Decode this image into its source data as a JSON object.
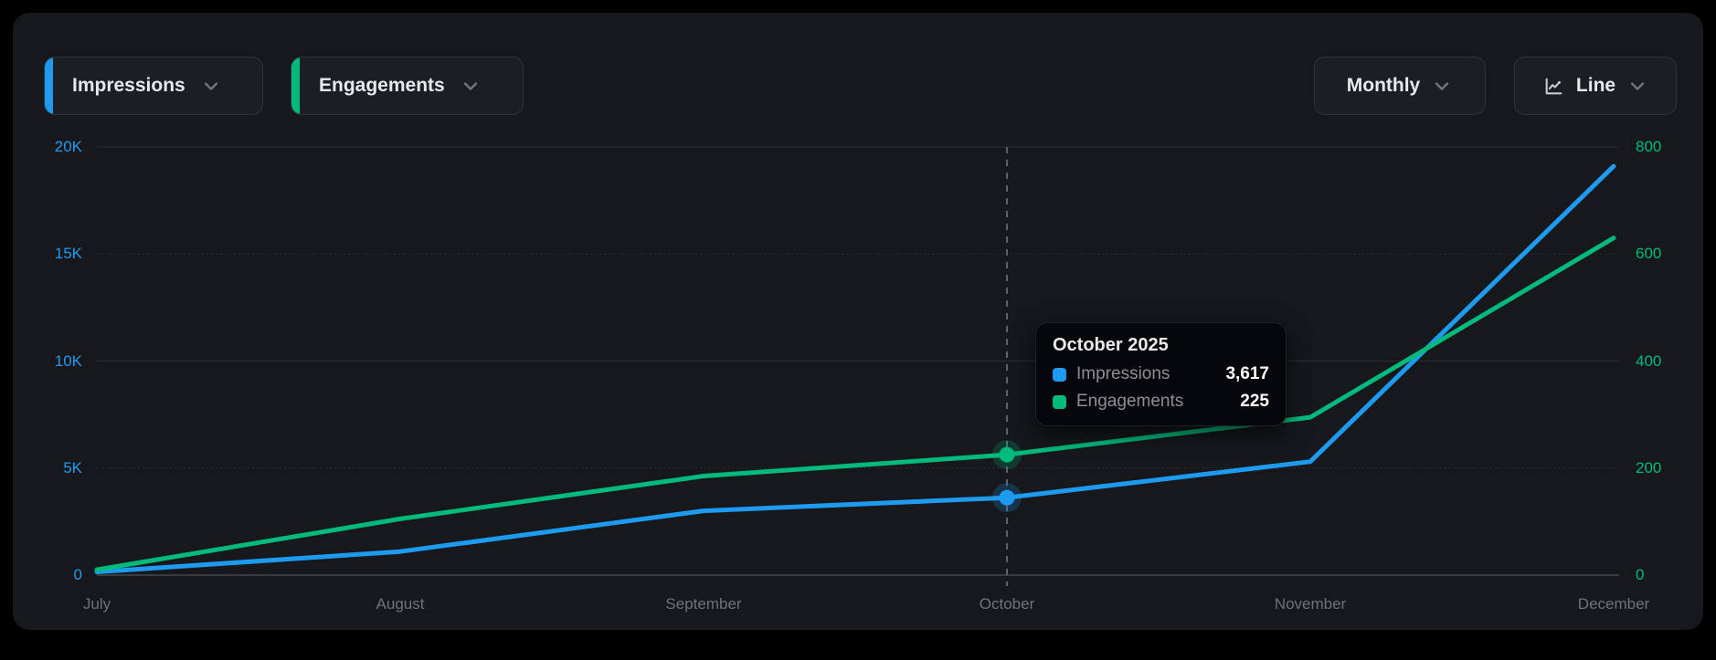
{
  "header": {
    "metric_buttons": [
      {
        "label": "Impressions",
        "accent": "#1d9bf0"
      },
      {
        "label": "Engagements",
        "accent": "#00ba7c"
      }
    ],
    "period_button": {
      "label": "Monthly"
    },
    "chart_type_button": {
      "label": "Line"
    }
  },
  "chart_data": {
    "type": "line",
    "title": "",
    "x": [
      "July",
      "August",
      "September",
      "October",
      "November",
      "December"
    ],
    "series": [
      {
        "name": "Impressions",
        "axis": "left",
        "color": "#1d9bf0",
        "values": [
          150,
          1100,
          3000,
          3617,
          5300,
          19100
        ]
      },
      {
        "name": "Engagements",
        "axis": "right",
        "color": "#00ba7c",
        "values": [
          10,
          105,
          185,
          225,
          295,
          630
        ]
      }
    ],
    "left_axis": {
      "ticks": [
        "0",
        "5K",
        "10K",
        "15K",
        "20K"
      ],
      "min": 0,
      "max": 20000,
      "color": "#1d9bf0"
    },
    "right_axis": {
      "ticks": [
        "0",
        "200",
        "400",
        "600",
        "800"
      ],
      "min": 0,
      "max": 800,
      "color": "#00ba7c"
    },
    "grid": "horizontal",
    "legend_position": "none",
    "hover_index": 3
  },
  "tooltip": {
    "title": "October 2025",
    "rows": [
      {
        "label": "Impressions",
        "value": "3,617",
        "color": "#1d9bf0"
      },
      {
        "label": "Engagements",
        "value": "225",
        "color": "#00ba7c"
      }
    ]
  },
  "colors": {
    "page_bg": "#000000",
    "card_bg": "#16181c",
    "gridline": "#2b2e33",
    "baseline": "#44484d",
    "guideline": "#5d6166"
  }
}
